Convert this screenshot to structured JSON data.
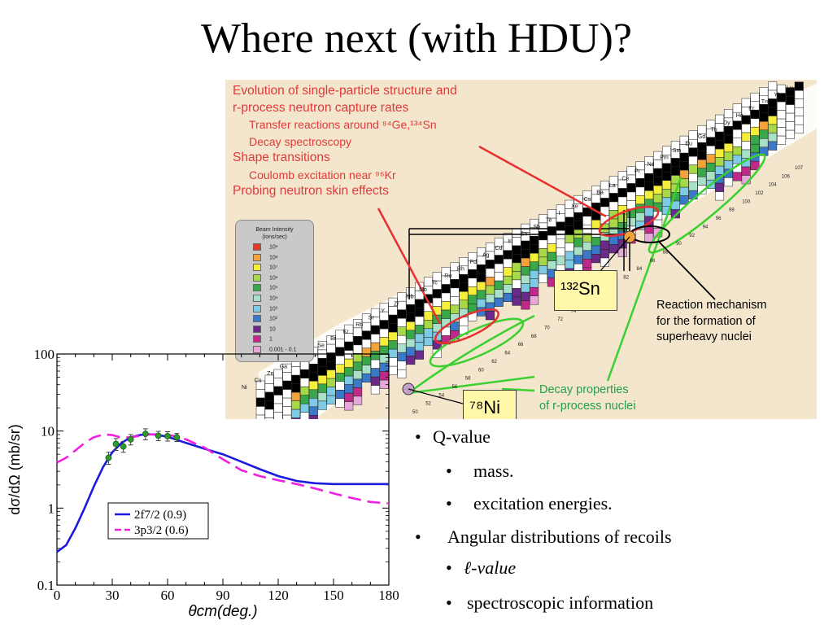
{
  "title": "Where next (with HDU)?",
  "figure": {
    "annotations": [
      {
        "text": "Evolution of single-particle structure and",
        "level": 1
      },
      {
        "text": "r-process neutron capture rates",
        "level": 1
      },
      {
        "text": "Transfer reactions around ⁸⁴Ge,¹³⁴Sn",
        "level": 2
      },
      {
        "text": "Decay spectroscopy",
        "level": 2
      },
      {
        "text": "Shape transitions",
        "level": 1
      },
      {
        "text": "Coulomb excitation near ⁹⁶Kr",
        "level": 2
      },
      {
        "text": "Probing neutron skin effects",
        "level": 1
      }
    ],
    "legend_title_1": "Beam Intensity",
    "legend_title_2": "(ions/sec)",
    "legend_items": [
      {
        "label": "10⁹",
        "color": "#e23b2a"
      },
      {
        "label": "10⁸",
        "color": "#f4a23a"
      },
      {
        "label": "10⁷",
        "color": "#f5ee3a"
      },
      {
        "label": "10⁶",
        "color": "#a6d848"
      },
      {
        "label": "10⁵",
        "color": "#3aa84a"
      },
      {
        "label": "10⁴",
        "color": "#a8e0c8"
      },
      {
        "label": "10³",
        "color": "#7ecbe6"
      },
      {
        "label": "10²",
        "color": "#3a78c8"
      },
      {
        "label": "10",
        "color": "#6a2a8a"
      },
      {
        "label": "1",
        "color": "#c0288a"
      },
      {
        "label": "0.001 - 0.1",
        "color": "#e6a8d8"
      }
    ],
    "sn_label": "¹³²Sn",
    "ni_label": "⁷⁸Ni",
    "reaction_label": [
      "Reaction mechanism",
      "for the formation of",
      "superheavy nuclei"
    ],
    "decay_label": [
      "Decay properties",
      "of r-process nuclei"
    ],
    "element_labels": [
      "Lu",
      "Yb",
      "Tm",
      "Er",
      "Ho",
      "Dy",
      "Tb",
      "Gd",
      "Eu",
      "Sm",
      "Pm",
      "Nd",
      "Pr",
      "Ce",
      "La",
      "Ba",
      "Cs",
      "Xe",
      "I",
      "Te",
      "Sb",
      "Sn",
      "In",
      "Cd",
      "Ag",
      "Pd",
      "Rh",
      "Ru",
      "Tc",
      "Mo",
      "Nb",
      "Zr",
      "Y",
      "Sr",
      "Rb",
      "Kr",
      "Br",
      "Se",
      "As",
      "Ge",
      "Ga",
      "Zn",
      "Cu",
      "Ni"
    ],
    "neutron_numbers": [
      "50",
      "52",
      "54",
      "56",
      "58",
      "60",
      "62",
      "64",
      "66",
      "68",
      "70",
      "72",
      "74",
      "76",
      "78",
      "80",
      "82",
      "84",
      "86",
      "88",
      "90",
      "92",
      "94",
      "96",
      "98",
      "100",
      "102",
      "104",
      "106",
      "107"
    ]
  },
  "chart_data": {
    "type": "line",
    "xlabel": "θcm(deg.)",
    "ylabel": "dσ/dΩ (mb/sr)",
    "xlim": [
      0,
      180
    ],
    "ylim": [
      0.1,
      100
    ],
    "yscale": "log",
    "xticks": [
      "0",
      "30",
      "60",
      "90",
      "120",
      "150",
      "180"
    ],
    "yticks": [
      "0.1",
      "1",
      "10",
      "100"
    ],
    "series": [
      {
        "name": "2f7/2 (0.9)",
        "color": "#1a1ae0",
        "style": "solid",
        "x": [
          0,
          5,
          10,
          15,
          20,
          25,
          30,
          35,
          40,
          45,
          50,
          55,
          60,
          65,
          70,
          80,
          90,
          100,
          110,
          120,
          130,
          140,
          150,
          160,
          170,
          180
        ],
        "y": [
          0.27,
          0.33,
          0.55,
          1.0,
          1.9,
          3.4,
          5.3,
          7.0,
          8.3,
          8.9,
          9.1,
          8.9,
          8.4,
          7.7,
          7.0,
          5.9,
          5.0,
          4.0,
          3.2,
          2.6,
          2.25,
          2.1,
          2.05,
          2.05,
          2.05,
          2.05
        ]
      },
      {
        "name": "3p3/2 (0.6)",
        "color": "#f020e0",
        "style": "dashed",
        "x": [
          0,
          5,
          10,
          15,
          20,
          25,
          30,
          35,
          40,
          45,
          50,
          55,
          60,
          65,
          70,
          80,
          90,
          100,
          110,
          120,
          130,
          140,
          150,
          160,
          170,
          180
        ],
        "y": [
          3.9,
          4.5,
          5.6,
          7.0,
          8.3,
          9.0,
          8.9,
          8.2,
          8.3,
          8.7,
          9.0,
          9.1,
          8.9,
          8.5,
          7.8,
          6.1,
          4.3,
          3.1,
          2.6,
          2.3,
          2.05,
          1.8,
          1.55,
          1.35,
          1.2,
          1.15
        ]
      }
    ],
    "points": {
      "x": [
        28,
        32,
        36,
        40,
        48,
        55,
        60,
        65
      ],
      "y": [
        4.5,
        6.8,
        6.3,
        7.8,
        9.2,
        8.7,
        8.6,
        8.3
      ],
      "err": [
        0.8,
        1.2,
        1.0,
        1.2,
        1.5,
        1.2,
        1.2,
        1.0
      ],
      "color": "#2e9a2e"
    },
    "legend": [
      {
        "label": "2f7/2 (0.9)",
        "color": "#1a1ae0"
      },
      {
        "label": "3p3/2 (0.6)",
        "color": "#f020e0"
      }
    ]
  },
  "bullets": [
    {
      "text": "Q-value",
      "level": 1
    },
    {
      "text": "mass.",
      "level": 2
    },
    {
      "text": "excitation energies.",
      "level": 2
    },
    {
      "text": "Angular distributions of recoils",
      "level": 1
    },
    {
      "text": "ℓ-value",
      "level": 2
    },
    {
      "text": "spectroscopic information",
      "level": 2
    }
  ]
}
